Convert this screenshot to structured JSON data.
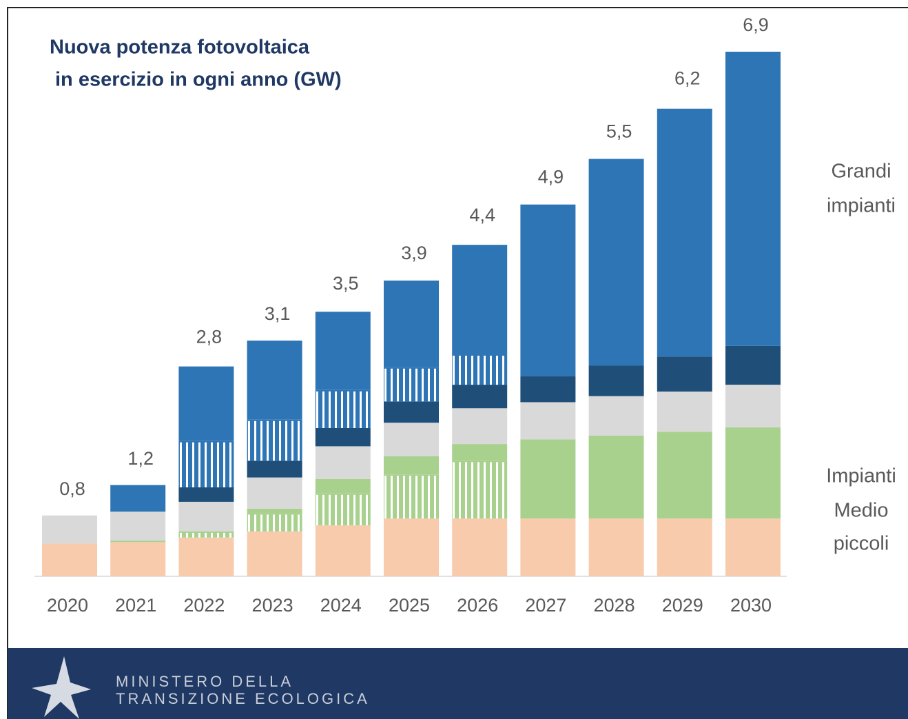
{
  "chart_data": {
    "type": "stacked-bar",
    "title": [
      "Nuova potenza fotovoltaica",
      "in esercizio in ogni anno (GW)"
    ],
    "categories": [
      "2020",
      "2021",
      "2022",
      "2023",
      "2024",
      "2025",
      "2026",
      "2027",
      "2028",
      "2029",
      "2030"
    ],
    "series": [
      {
        "color": "#f8cbad",
        "hatch": false,
        "values": [
          0.43,
          0.45,
          0.51,
          0.59,
          0.67,
          0.76,
          0.76,
          0.76,
          0.76,
          0.76,
          0.76
        ]
      },
      {
        "color": "#a9d18e",
        "hatch": true,
        "values": [
          0,
          0,
          0.08,
          0.24,
          0.42,
          0.58,
          0.76,
          0,
          0,
          0,
          0
        ]
      },
      {
        "color": "#a9d18e",
        "hatch": false,
        "values": [
          0,
          0.02,
          0,
          0.06,
          0.19,
          0.24,
          0.22,
          1.04,
          1.09,
          1.14,
          1.2
        ]
      },
      {
        "color": "#d9d9d9",
        "hatch": false,
        "values": [
          0.37,
          0.38,
          0.39,
          0.41,
          0.43,
          0.44,
          0.47,
          0.49,
          0.52,
          0.53,
          0.56
        ]
      },
      {
        "color": "#1f4e79",
        "hatch": false,
        "values": [
          0,
          0,
          0.19,
          0.22,
          0.24,
          0.28,
          0.31,
          0.34,
          0.4,
          0.46,
          0.51
        ]
      },
      {
        "color": "#2e75b6",
        "hatch": true,
        "values": [
          0,
          0,
          0.61,
          0.54,
          0.5,
          0.45,
          0.4,
          0,
          0,
          0,
          0
        ]
      },
      {
        "color": "#2e75b6",
        "hatch": false,
        "values": [
          0,
          0.35,
          0.98,
          1.04,
          1.03,
          1.14,
          1.44,
          2.26,
          2.72,
          3.26,
          3.87
        ]
      }
    ],
    "totals": [
      0.8,
      1.2,
      2.8,
      3.1,
      3.5,
      3.9,
      4.4,
      4.9,
      5.5,
      6.2,
      6.9
    ],
    "value_labels": [
      "0,8",
      "1,2",
      "2,8",
      "3,1",
      "3,5",
      "3,9",
      "4,4",
      "4,9",
      "5,5",
      "6,2",
      "6,9"
    ],
    "annotations": [
      [
        "Grandi",
        "impianti"
      ],
      [
        "Impianti",
        "Medio",
        "piccoli"
      ]
    ]
  },
  "footer": {
    "lines": [
      "MINISTERO DELLA",
      "TRANSIZIONE ECOLOGICA"
    ]
  }
}
